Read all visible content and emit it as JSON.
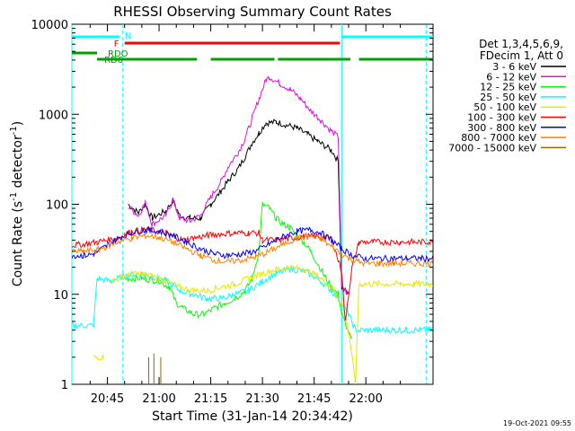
{
  "chart_data": {
    "type": "line",
    "title": "RHESSI Observing Summary Count Rates",
    "xlabel": "Start Time (31-Jan-14 20:34:42)",
    "ylabel_pre": "Count Rate (s",
    "ylabel_sup": "-1",
    "ylabel_mid": " detector",
    "ylabel_post": ")",
    "y_scale": "log",
    "ylim": [
      1,
      10000
    ],
    "xlim_min": [
      34.7,
      139.5
    ],
    "x_ticks": [
      {
        "min": 45,
        "label": "20:45"
      },
      {
        "min": 60,
        "label": "21:00"
      },
      {
        "min": 75,
        "label": "21:15"
      },
      {
        "min": 90,
        "label": "21:30"
      },
      {
        "min": 105,
        "label": "21:45"
      },
      {
        "min": 120,
        "label": "22:00"
      }
    ],
    "y_ticks": [
      {
        "value": 1,
        "label": "1"
      },
      {
        "value": 10,
        "label": "10"
      },
      {
        "value": 100,
        "label": "100"
      },
      {
        "value": 1000,
        "label": "1000"
      },
      {
        "value": 10000,
        "label": "10000"
      }
    ],
    "legend_position": "top-right",
    "legend_header": [
      "Det 1,3,4,5,6,9,",
      "FDecim 1, Att 0"
    ],
    "series": [
      {
        "name": "3 - 6 keV",
        "color": "#000000",
        "points": [
          [
            34.7,
            null
          ],
          [
            49.5,
            null
          ],
          [
            51,
            100
          ],
          [
            54,
            80
          ],
          [
            56,
            100
          ],
          [
            58,
            70
          ],
          [
            62,
            85
          ],
          [
            64,
            110
          ],
          [
            66,
            75
          ],
          [
            69,
            70
          ],
          [
            72,
            70
          ],
          [
            75,
            100
          ],
          [
            78,
            140
          ],
          [
            80,
            180
          ],
          [
            83,
            250
          ],
          [
            85,
            340
          ],
          [
            87,
            480
          ],
          [
            89,
            620
          ],
          [
            91,
            800
          ],
          [
            94,
            820
          ],
          [
            97,
            760
          ],
          [
            100,
            700
          ],
          [
            103,
            600
          ],
          [
            106,
            500
          ],
          [
            110,
            400
          ],
          [
            112,
            300
          ],
          [
            113,
            12
          ],
          [
            115,
            10
          ],
          [
            117,
            null
          ],
          [
            139.5,
            null
          ]
        ]
      },
      {
        "name": "6 - 12 keV",
        "color": "#e010e0",
        "points": [
          [
            34.7,
            null
          ],
          [
            49.5,
            null
          ],
          [
            51,
            95
          ],
          [
            54,
            75
          ],
          [
            56,
            105
          ],
          [
            58,
            60
          ],
          [
            62,
            75
          ],
          [
            64,
            110
          ],
          [
            66,
            70
          ],
          [
            69,
            65
          ],
          [
            72,
            75
          ],
          [
            75,
            120
          ],
          [
            78,
            180
          ],
          [
            80,
            260
          ],
          [
            83,
            380
          ],
          [
            85,
            540
          ],
          [
            87,
            900
          ],
          [
            89,
            1500
          ],
          [
            91,
            2400
          ],
          [
            92,
            2600
          ],
          [
            95,
            2200
          ],
          [
            98,
            1900
          ],
          [
            101,
            1500
          ],
          [
            104,
            1100
          ],
          [
            107,
            850
          ],
          [
            110,
            650
          ],
          [
            112,
            560
          ],
          [
            113,
            12
          ],
          [
            115,
            10
          ],
          [
            117,
            null
          ],
          [
            139.5,
            null
          ]
        ]
      },
      {
        "name": "12 - 25 keV",
        "color": "#00ff00",
        "points": [
          [
            34.7,
            null
          ],
          [
            50,
            15
          ],
          [
            55,
            15
          ],
          [
            60,
            14
          ],
          [
            63,
            12
          ],
          [
            65,
            8
          ],
          [
            67,
            7
          ],
          [
            70,
            6
          ],
          [
            73,
            6
          ],
          [
            76,
            7
          ],
          [
            79,
            8
          ],
          [
            82,
            9
          ],
          [
            85,
            11
          ],
          [
            87,
            15
          ],
          [
            89,
            30
          ],
          [
            90,
            100
          ],
          [
            92,
            90
          ],
          [
            94,
            70
          ],
          [
            96,
            60
          ],
          [
            98,
            55
          ],
          [
            100,
            45
          ],
          [
            102,
            38
          ],
          [
            104,
            30
          ],
          [
            106,
            22
          ],
          [
            108,
            16
          ],
          [
            110,
            12
          ],
          [
            112,
            10
          ],
          [
            113,
            6
          ],
          [
            116,
            3
          ],
          [
            117,
            null
          ],
          [
            139.5,
            null
          ]
        ]
      },
      {
        "name": "25 - 50 keV",
        "color": "#00ffff",
        "points": [
          [
            34.7,
            4.5
          ],
          [
            41,
            4.5
          ],
          [
            42,
            15
          ],
          [
            46,
            14
          ],
          [
            50,
            16
          ],
          [
            54,
            17
          ],
          [
            58,
            16
          ],
          [
            62,
            14
          ],
          [
            66,
            11
          ],
          [
            70,
            10
          ],
          [
            74,
            9
          ],
          [
            78,
            9
          ],
          [
            82,
            10
          ],
          [
            86,
            11
          ],
          [
            90,
            14
          ],
          [
            94,
            17
          ],
          [
            98,
            19
          ],
          [
            102,
            18
          ],
          [
            106,
            15
          ],
          [
            110,
            11
          ],
          [
            113,
            8
          ],
          [
            115,
            6
          ],
          [
            117,
            4
          ],
          [
            120,
            4
          ],
          [
            124,
            4
          ],
          [
            128,
            4
          ],
          [
            132,
            4
          ],
          [
            136,
            4
          ],
          [
            138,
            4
          ],
          [
            139.5,
            4
          ]
        ]
      },
      {
        "name": "50 - 100 keV",
        "color": "#e8e800",
        "points": [
          [
            34.7,
            null
          ],
          [
            41,
            2
          ],
          [
            44,
            2
          ],
          [
            45,
            null
          ],
          [
            46,
            14
          ],
          [
            50,
            16
          ],
          [
            54,
            17
          ],
          [
            58,
            16
          ],
          [
            62,
            14
          ],
          [
            66,
            12
          ],
          [
            70,
            11
          ],
          [
            74,
            11
          ],
          [
            78,
            12
          ],
          [
            82,
            13
          ],
          [
            86,
            15
          ],
          [
            90,
            17
          ],
          [
            94,
            19
          ],
          [
            98,
            20
          ],
          [
            102,
            19
          ],
          [
            106,
            16
          ],
          [
            110,
            12
          ],
          [
            113,
            8
          ],
          [
            115,
            4
          ],
          [
            117,
            1
          ],
          [
            118,
            13
          ],
          [
            122,
            13
          ],
          [
            126,
            13
          ],
          [
            130,
            13
          ],
          [
            134,
            13
          ],
          [
            138,
            13
          ],
          [
            139.5,
            13
          ]
        ]
      },
      {
        "name": "100 - 300 keV",
        "color": "#ff0000",
        "points": [
          [
            34.7,
            35
          ],
          [
            38,
            36
          ],
          [
            42,
            38
          ],
          [
            45,
            40
          ],
          [
            48,
            42
          ],
          [
            50,
            46
          ],
          [
            52,
            50
          ],
          [
            56,
            52
          ],
          [
            60,
            50
          ],
          [
            62,
            48
          ],
          [
            64,
            44
          ],
          [
            67,
            40
          ],
          [
            70,
            42
          ],
          [
            74,
            45
          ],
          [
            78,
            47
          ],
          [
            82,
            48
          ],
          [
            86,
            48
          ],
          [
            89,
            48
          ],
          [
            90,
            40
          ],
          [
            94,
            40
          ],
          [
            98,
            42
          ],
          [
            102,
            44
          ],
          [
            106,
            44
          ],
          [
            110,
            42
          ],
          [
            113,
            18
          ],
          [
            114,
            5
          ],
          [
            116,
            20
          ],
          [
            118,
            38
          ],
          [
            122,
            38
          ],
          [
            126,
            38
          ],
          [
            130,
            38
          ],
          [
            134,
            38
          ],
          [
            138,
            38
          ],
          [
            139.5,
            38
          ]
        ]
      },
      {
        "name": "300 - 800 keV",
        "color": "#0000ff",
        "points": [
          [
            34.7,
            27
          ],
          [
            38,
            27
          ],
          [
            41,
            28
          ],
          [
            45,
            35
          ],
          [
            48,
            42
          ],
          [
            52,
            48
          ],
          [
            56,
            52
          ],
          [
            60,
            50
          ],
          [
            64,
            45
          ],
          [
            68,
            38
          ],
          [
            72,
            32
          ],
          [
            76,
            28
          ],
          [
            80,
            27
          ],
          [
            84,
            28
          ],
          [
            88,
            30
          ],
          [
            92,
            36
          ],
          [
            96,
            44
          ],
          [
            100,
            50
          ],
          [
            104,
            52
          ],
          [
            107,
            48
          ],
          [
            110,
            40
          ],
          [
            113,
            32
          ],
          [
            116,
            27
          ],
          [
            120,
            25
          ],
          [
            124,
            25
          ],
          [
            128,
            25
          ],
          [
            132,
            25
          ],
          [
            136,
            25
          ],
          [
            139.5,
            25
          ]
        ]
      },
      {
        "name": "800 - 7000 keV",
        "color": "#ff8000",
        "points": [
          [
            34.7,
            30
          ],
          [
            38,
            30
          ],
          [
            42,
            31
          ],
          [
            45,
            34
          ],
          [
            48,
            38
          ],
          [
            52,
            42
          ],
          [
            56,
            45
          ],
          [
            60,
            43
          ],
          [
            64,
            38
          ],
          [
            68,
            32
          ],
          [
            72,
            27
          ],
          [
            76,
            24
          ],
          [
            80,
            23
          ],
          [
            84,
            24
          ],
          [
            88,
            26
          ],
          [
            92,
            30
          ],
          [
            96,
            36
          ],
          [
            100,
            42
          ],
          [
            104,
            44
          ],
          [
            107,
            41
          ],
          [
            110,
            34
          ],
          [
            113,
            28
          ],
          [
            116,
            24
          ],
          [
            120,
            22
          ],
          [
            124,
            22
          ],
          [
            128,
            22
          ],
          [
            132,
            22
          ],
          [
            136,
            22
          ],
          [
            139.5,
            22
          ]
        ]
      },
      {
        "name": "7000 - 15000 keV",
        "color": "#8b6d00",
        "points": [
          [
            34.7,
            null
          ],
          [
            139.5,
            null
          ]
        ]
      }
    ],
    "annotations": {
      "attenuator_bars": [
        {
          "label": "N",
          "color": "#00ffff",
          "segments": [
            [
              34.7,
              48.5
            ],
            [
              113,
              139.5
            ]
          ]
        },
        {
          "label": "F",
          "color": "#ff0000",
          "segments": [
            [
              50,
              112.5
            ]
          ]
        },
        {
          "label": "RDO",
          "color": "#00a000",
          "segments": [
            [
              34.7,
              42
            ]
          ]
        },
        {
          "label": "RD6",
          "color": "#00a000",
          "segments": [
            [
              42,
              71
            ],
            [
              75,
              93.5
            ],
            [
              94.5,
              115.5
            ],
            [
              118,
              139.5
            ]
          ]
        }
      ],
      "vlines_solid": [
        34.7,
        113
      ],
      "vlines_dashed": [
        49.5,
        137.5
      ]
    }
  },
  "footer_date": "19-Oct-2021 09:55"
}
